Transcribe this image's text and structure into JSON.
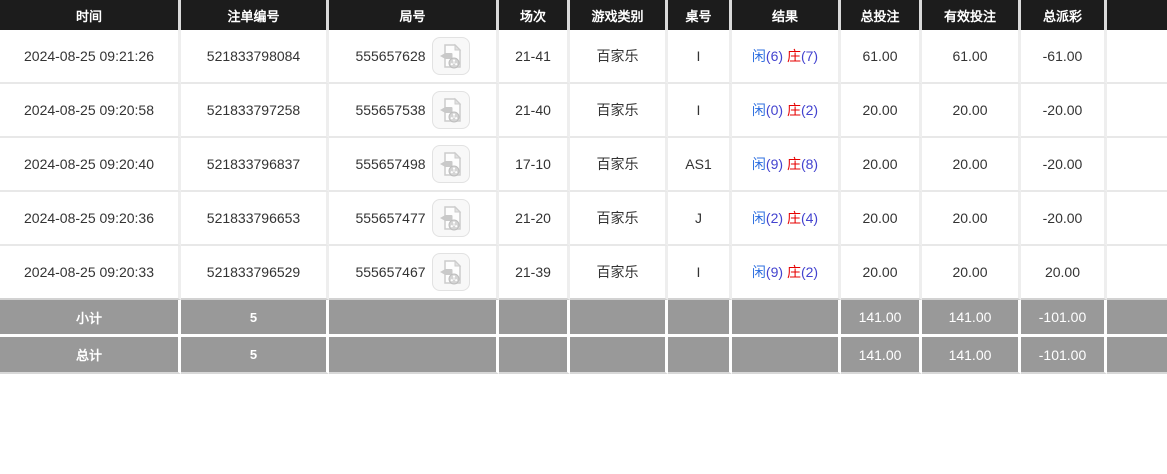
{
  "table": {
    "columns": [
      {
        "key": "time",
        "label": "时间"
      },
      {
        "key": "bet-id",
        "label": "注单编号"
      },
      {
        "key": "round-no",
        "label": "局号"
      },
      {
        "key": "session",
        "label": "场次"
      },
      {
        "key": "game-type",
        "label": "游戏类别"
      },
      {
        "key": "table-no",
        "label": "桌号"
      },
      {
        "key": "result",
        "label": "结果"
      },
      {
        "key": "total-bet",
        "label": "总投注"
      },
      {
        "key": "valid-bet",
        "label": "有效投注"
      },
      {
        "key": "total-payout",
        "label": "总派彩"
      },
      {
        "key": "extra",
        "label": ""
      }
    ],
    "rows": [
      {
        "time": "2024-08-25 09:21:26",
        "bet_id": "521833798084",
        "round_no": "555657628",
        "session": "21-41",
        "game_type": "百家乐",
        "table_no": "I",
        "result_player": "闲",
        "result_player_score": "(6)",
        "result_banker": "庄",
        "result_banker_score": "(7)",
        "total_bet": "61.00",
        "valid_bet": "61.00",
        "total_payout": "-61.00"
      },
      {
        "time": "2024-08-25 09:20:58",
        "bet_id": "521833797258",
        "round_no": "555657538",
        "session": "21-40",
        "game_type": "百家乐",
        "table_no": "I",
        "result_player": "闲",
        "result_player_score": "(0)",
        "result_banker": "庄",
        "result_banker_score": "(2)",
        "total_bet": "20.00",
        "valid_bet": "20.00",
        "total_payout": "-20.00"
      },
      {
        "time": "2024-08-25 09:20:40",
        "bet_id": "521833796837",
        "round_no": "555657498",
        "session": "17-10",
        "game_type": "百家乐",
        "table_no": "AS1",
        "result_player": "闲",
        "result_player_score": "(9)",
        "result_banker": "庄",
        "result_banker_score": "(8)",
        "total_bet": "20.00",
        "valid_bet": "20.00",
        "total_payout": "-20.00"
      },
      {
        "time": "2024-08-25 09:20:36",
        "bet_id": "521833796653",
        "round_no": "555657477",
        "session": "21-20",
        "game_type": "百家乐",
        "table_no": "J",
        "result_player": "闲",
        "result_player_score": "(2)",
        "result_banker": "庄",
        "result_banker_score": "(4)",
        "total_bet": "20.00",
        "valid_bet": "20.00",
        "total_payout": "-20.00"
      },
      {
        "time": "2024-08-25 09:20:33",
        "bet_id": "521833796529",
        "round_no": "555657467",
        "session": "21-39",
        "game_type": "百家乐",
        "table_no": "I",
        "result_player": "闲",
        "result_player_score": "(9)",
        "result_banker": "庄",
        "result_banker_score": "(2)",
        "total_bet": "20.00",
        "valid_bet": "20.00",
        "total_payout": "20.00"
      }
    ],
    "summary": [
      {
        "label": "小计",
        "count": "5",
        "total_bet": "141.00",
        "valid_bet": "141.00",
        "total_payout": "-101.00"
      },
      {
        "label": "总计",
        "count": "5",
        "total_bet": "141.00",
        "valid_bet": "141.00",
        "total_payout": "-101.00"
      }
    ],
    "icons": {
      "video_replay": "video-document-icon"
    },
    "colors": {
      "header_bg": "#1c1c1c",
      "summary_bg": "#999999",
      "bet_blue": "#3a6be0",
      "player_blue": "#2e6fe0",
      "score_blue": "#4343cf",
      "banker_red": "#e60000",
      "negative_red": "#e60000"
    }
  }
}
